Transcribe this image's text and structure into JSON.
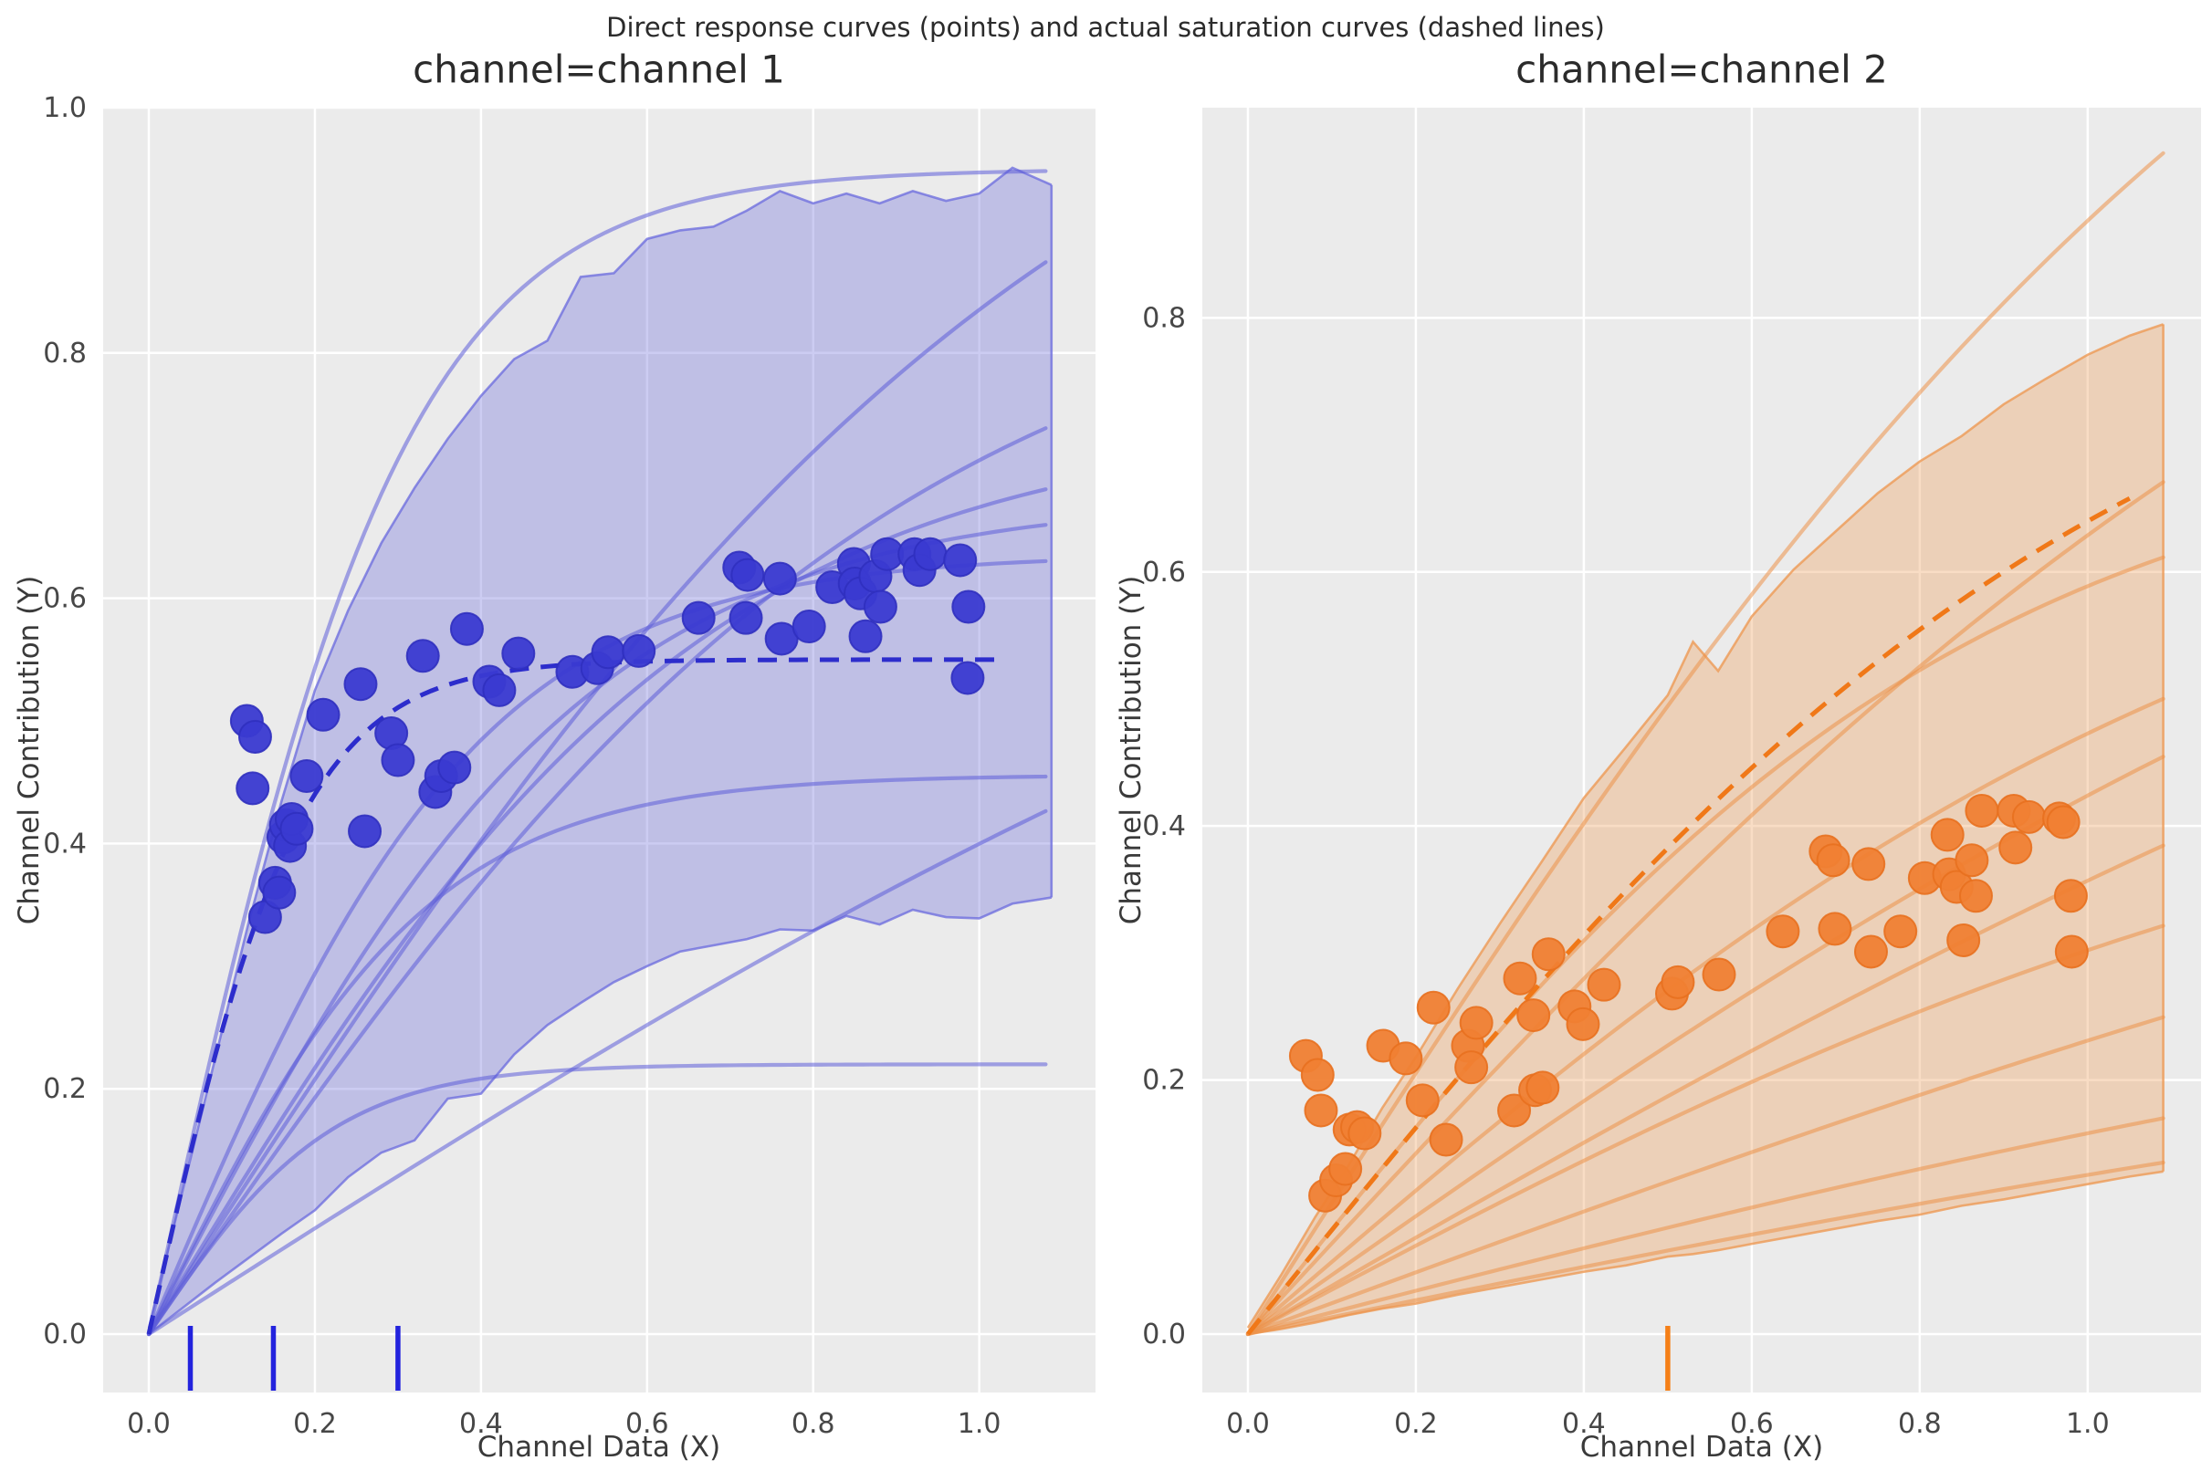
{
  "figure": {
    "suptitle": "Direct response curves (points) and actual saturation curves (dashed lines)",
    "background": "#ffffff",
    "axes_background": "#ebebeb",
    "grid_color": "#ffffff"
  },
  "chart_data": [
    {
      "type": "scatter",
      "title": "channel=channel 1",
      "xlabel": "Channel Data (X)",
      "ylabel": "Channel Contribution (Y)",
      "xlim": [
        -0.055,
        1.14
      ],
      "ylim": [
        -0.0476,
        1.0
      ],
      "grid": true,
      "legend": false,
      "xticks": {
        "values": [
          0.0,
          0.2,
          0.4,
          0.6,
          0.8,
          1.0
        ],
        "labels": [
          "0.0",
          "0.2",
          "0.4",
          "0.6",
          "0.8",
          "1.0"
        ]
      },
      "yticks": {
        "values": [
          0.0,
          0.2,
          0.4,
          0.6,
          0.8,
          1.0
        ],
        "labels": [
          "0.0",
          "0.2",
          "0.4",
          "0.6",
          "0.8",
          "1.0"
        ]
      },
      "colors": {
        "scatter": "#3a3ad1",
        "scatter_edge": "#3030bf",
        "dashed": "#2d2dcc",
        "curve": "#5d5dd8",
        "curve_opacity": 0.55,
        "band_fill": "#6a6ad9",
        "band_opacity": 0.34,
        "band_edge": "#6a6ade",
        "band_edge_opacity": 0.75,
        "rug": "#2323dd"
      },
      "scatter": [
        [
          0.118,
          0.5
        ],
        [
          0.128,
          0.487
        ],
        [
          0.125,
          0.445
        ],
        [
          0.14,
          0.34
        ],
        [
          0.152,
          0.368
        ],
        [
          0.157,
          0.36
        ],
        [
          0.162,
          0.405
        ],
        [
          0.165,
          0.415
        ],
        [
          0.17,
          0.398
        ],
        [
          0.172,
          0.42
        ],
        [
          0.178,
          0.412
        ],
        [
          0.19,
          0.455
        ],
        [
          0.21,
          0.505
        ],
        [
          0.255,
          0.53
        ],
        [
          0.26,
          0.41
        ],
        [
          0.292,
          0.49
        ],
        [
          0.3,
          0.468
        ],
        [
          0.33,
          0.553
        ],
        [
          0.345,
          0.442
        ],
        [
          0.352,
          0.455
        ],
        [
          0.368,
          0.462
        ],
        [
          0.383,
          0.575
        ],
        [
          0.41,
          0.532
        ],
        [
          0.422,
          0.525
        ],
        [
          0.445,
          0.555
        ],
        [
          0.51,
          0.54
        ],
        [
          0.54,
          0.543
        ],
        [
          0.553,
          0.556
        ],
        [
          0.59,
          0.557
        ],
        [
          0.662,
          0.584
        ],
        [
          0.711,
          0.625
        ],
        [
          0.721,
          0.619
        ],
        [
          0.719,
          0.584
        ],
        [
          0.76,
          0.616
        ],
        [
          0.762,
          0.567
        ],
        [
          0.795,
          0.577
        ],
        [
          0.823,
          0.609
        ],
        [
          0.849,
          0.628
        ],
        [
          0.85,
          0.612
        ],
        [
          0.857,
          0.604
        ],
        [
          0.863,
          0.569
        ],
        [
          0.875,
          0.618
        ],
        [
          0.881,
          0.593
        ],
        [
          0.889,
          0.636
        ],
        [
          0.922,
          0.636
        ],
        [
          0.928,
          0.623
        ],
        [
          0.941,
          0.636
        ],
        [
          0.977,
          0.631
        ],
        [
          0.987,
          0.593
        ],
        [
          0.986,
          0.535
        ]
      ],
      "dashed_curve": {
        "amplitude": 0.55,
        "lam": 11.0,
        "x_end": 1.03
      },
      "sample_curves": [
        {
          "amplitude": 0.95,
          "lam": 6.5
        },
        {
          "amplitude": 1.166,
          "lam": 1.8
        },
        {
          "amplitude": 0.89,
          "lam": 2.2
        },
        {
          "amplitude": 0.745,
          "lam": 3.0
        },
        {
          "amplitude": 0.682,
          "lam": 3.8
        },
        {
          "amplitude": 0.636,
          "lam": 5.0
        },
        {
          "amplitude": 0.456,
          "lam": 6.0
        },
        {
          "amplitude": 0.865,
          "lam": 1.0
        },
        {
          "amplitude": 0.22,
          "lam": 9.0
        }
      ],
      "curves_x_end": 1.087,
      "band": {
        "x": [
          0.0,
          0.04,
          0.08,
          0.12,
          0.16,
          0.2,
          0.24,
          0.28,
          0.32,
          0.36,
          0.4,
          0.44,
          0.48,
          0.52,
          0.56,
          0.6,
          0.64,
          0.68,
          0.72,
          0.76,
          0.8,
          0.84,
          0.88,
          0.92,
          0.96,
          1.0,
          1.04,
          1.087
        ],
        "high": [
          0.005,
          0.115,
          0.225,
          0.335,
          0.435,
          0.525,
          0.59,
          0.645,
          0.69,
          0.73,
          0.765,
          0.795,
          0.81,
          0.862,
          0.865,
          0.893,
          0.9,
          0.903,
          0.916,
          0.932,
          0.922,
          0.93,
          0.922,
          0.932,
          0.924,
          0.93,
          0.951,
          0.937
        ],
        "low": [
          0.0,
          0.021,
          0.042,
          0.062,
          0.082,
          0.101,
          0.128,
          0.148,
          0.158,
          0.192,
          0.196,
          0.228,
          0.252,
          0.27,
          0.287,
          0.3,
          0.312,
          0.317,
          0.322,
          0.33,
          0.329,
          0.341,
          0.334,
          0.346,
          0.34,
          0.339,
          0.351,
          0.356
        ]
      },
      "rug": [
        0.05,
        0.15,
        0.3
      ]
    },
    {
      "type": "scatter",
      "title": "channel=channel 2",
      "xlabel": "Channel Data (X)",
      "ylabel": "Channel Contribution (Y)",
      "xlim": [
        -0.0543,
        1.135
      ],
      "ylim": [
        -0.046,
        0.9655
      ],
      "grid": true,
      "legend": false,
      "xticks": {
        "values": [
          0.0,
          0.2,
          0.4,
          0.6,
          0.8,
          1.0
        ],
        "labels": [
          "0.0",
          "0.2",
          "0.4",
          "0.6",
          "0.8",
          "1.0"
        ]
      },
      "yticks": {
        "values": [
          0.0,
          0.2,
          0.4,
          0.6,
          0.8
        ],
        "labels": [
          "0.0",
          "0.2",
          "0.4",
          "0.6",
          "0.8"
        ]
      },
      "colors": {
        "scatter": "#f08033",
        "scatter_edge": "#e8701f",
        "dashed": "#f07818",
        "curve": "#ec9248",
        "curve_opacity": 0.55,
        "band_fill": "#ee9a55",
        "band_opacity": 0.34,
        "band_edge": "#ee9a55",
        "band_edge_opacity": 0.8,
        "rug": "#f57f17"
      },
      "scatter": [
        [
          0.069,
          0.219
        ],
        [
          0.083,
          0.204
        ],
        [
          0.087,
          0.176
        ],
        [
          0.092,
          0.109
        ],
        [
          0.105,
          0.121
        ],
        [
          0.116,
          0.13
        ],
        [
          0.121,
          0.161
        ],
        [
          0.13,
          0.163
        ],
        [
          0.139,
          0.158
        ],
        [
          0.161,
          0.227
        ],
        [
          0.188,
          0.217
        ],
        [
          0.208,
          0.184
        ],
        [
          0.221,
          0.257
        ],
        [
          0.236,
          0.153
        ],
        [
          0.262,
          0.227
        ],
        [
          0.266,
          0.21
        ],
        [
          0.272,
          0.245
        ],
        [
          0.317,
          0.176
        ],
        [
          0.324,
          0.28
        ],
        [
          0.34,
          0.251
        ],
        [
          0.342,
          0.192
        ],
        [
          0.351,
          0.194
        ],
        [
          0.358,
          0.299
        ],
        [
          0.389,
          0.258
        ],
        [
          0.399,
          0.244
        ],
        [
          0.424,
          0.275
        ],
        [
          0.505,
          0.268
        ],
        [
          0.512,
          0.277
        ],
        [
          0.561,
          0.283
        ],
        [
          0.637,
          0.317
        ],
        [
          0.688,
          0.38
        ],
        [
          0.697,
          0.373
        ],
        [
          0.699,
          0.319
        ],
        [
          0.739,
          0.37
        ],
        [
          0.742,
          0.301
        ],
        [
          0.777,
          0.317
        ],
        [
          0.806,
          0.359
        ],
        [
          0.833,
          0.393
        ],
        [
          0.835,
          0.362
        ],
        [
          0.844,
          0.352
        ],
        [
          0.852,
          0.31
        ],
        [
          0.862,
          0.373
        ],
        [
          0.867,
          0.345
        ],
        [
          0.874,
          0.412
        ],
        [
          0.912,
          0.412
        ],
        [
          0.914,
          0.383
        ],
        [
          0.93,
          0.407
        ],
        [
          0.966,
          0.406
        ],
        [
          0.971,
          0.403
        ],
        [
          0.98,
          0.345
        ],
        [
          0.981,
          0.301
        ]
      ],
      "dashed_curve": {
        "amplitude": 0.865,
        "lam": 1.9,
        "x_end": 1.05
      },
      "sample_curves": [
        {
          "amplitude": 1.38,
          "lam": 1.5
        },
        {
          "amplitude": 1.1,
          "lam": 1.3
        },
        {
          "amplitude": 0.72,
          "lam": 2.3
        },
        {
          "amplitude": 0.712,
          "lam": 1.6
        },
        {
          "amplitude": 0.847,
          "lam": 1.1
        },
        {
          "amplitude": 0.846,
          "lam": 0.9
        },
        {
          "amplitude": 0.5,
          "lam": 1.4
        },
        {
          "amplitude": 0.608,
          "lam": 0.8
        },
        {
          "amplitude": 0.342,
          "lam": 1.0
        },
        {
          "amplitude": 0.297,
          "lam": 0.9
        }
      ],
      "curves_x_end": 1.09,
      "band": {
        "x": [
          0.0,
          0.04,
          0.08,
          0.12,
          0.16,
          0.2,
          0.25,
          0.3,
          0.35,
          0.4,
          0.45,
          0.5,
          0.53,
          0.56,
          0.6,
          0.65,
          0.7,
          0.75,
          0.8,
          0.85,
          0.9,
          0.95,
          1.0,
          1.05,
          1.09
        ],
        "high": [
          0.005,
          0.047,
          0.092,
          0.133,
          0.178,
          0.218,
          0.272,
          0.323,
          0.372,
          0.422,
          0.462,
          0.503,
          0.545,
          0.522,
          0.565,
          0.602,
          0.632,
          0.662,
          0.687,
          0.707,
          0.732,
          0.752,
          0.771,
          0.786,
          0.795
        ],
        "low": [
          0.0,
          0.004,
          0.009,
          0.015,
          0.02,
          0.024,
          0.031,
          0.037,
          0.043,
          0.049,
          0.054,
          0.061,
          0.063,
          0.066,
          0.071,
          0.077,
          0.083,
          0.089,
          0.094,
          0.101,
          0.106,
          0.112,
          0.118,
          0.124,
          0.128
        ]
      },
      "rug": [
        0.5
      ]
    }
  ]
}
